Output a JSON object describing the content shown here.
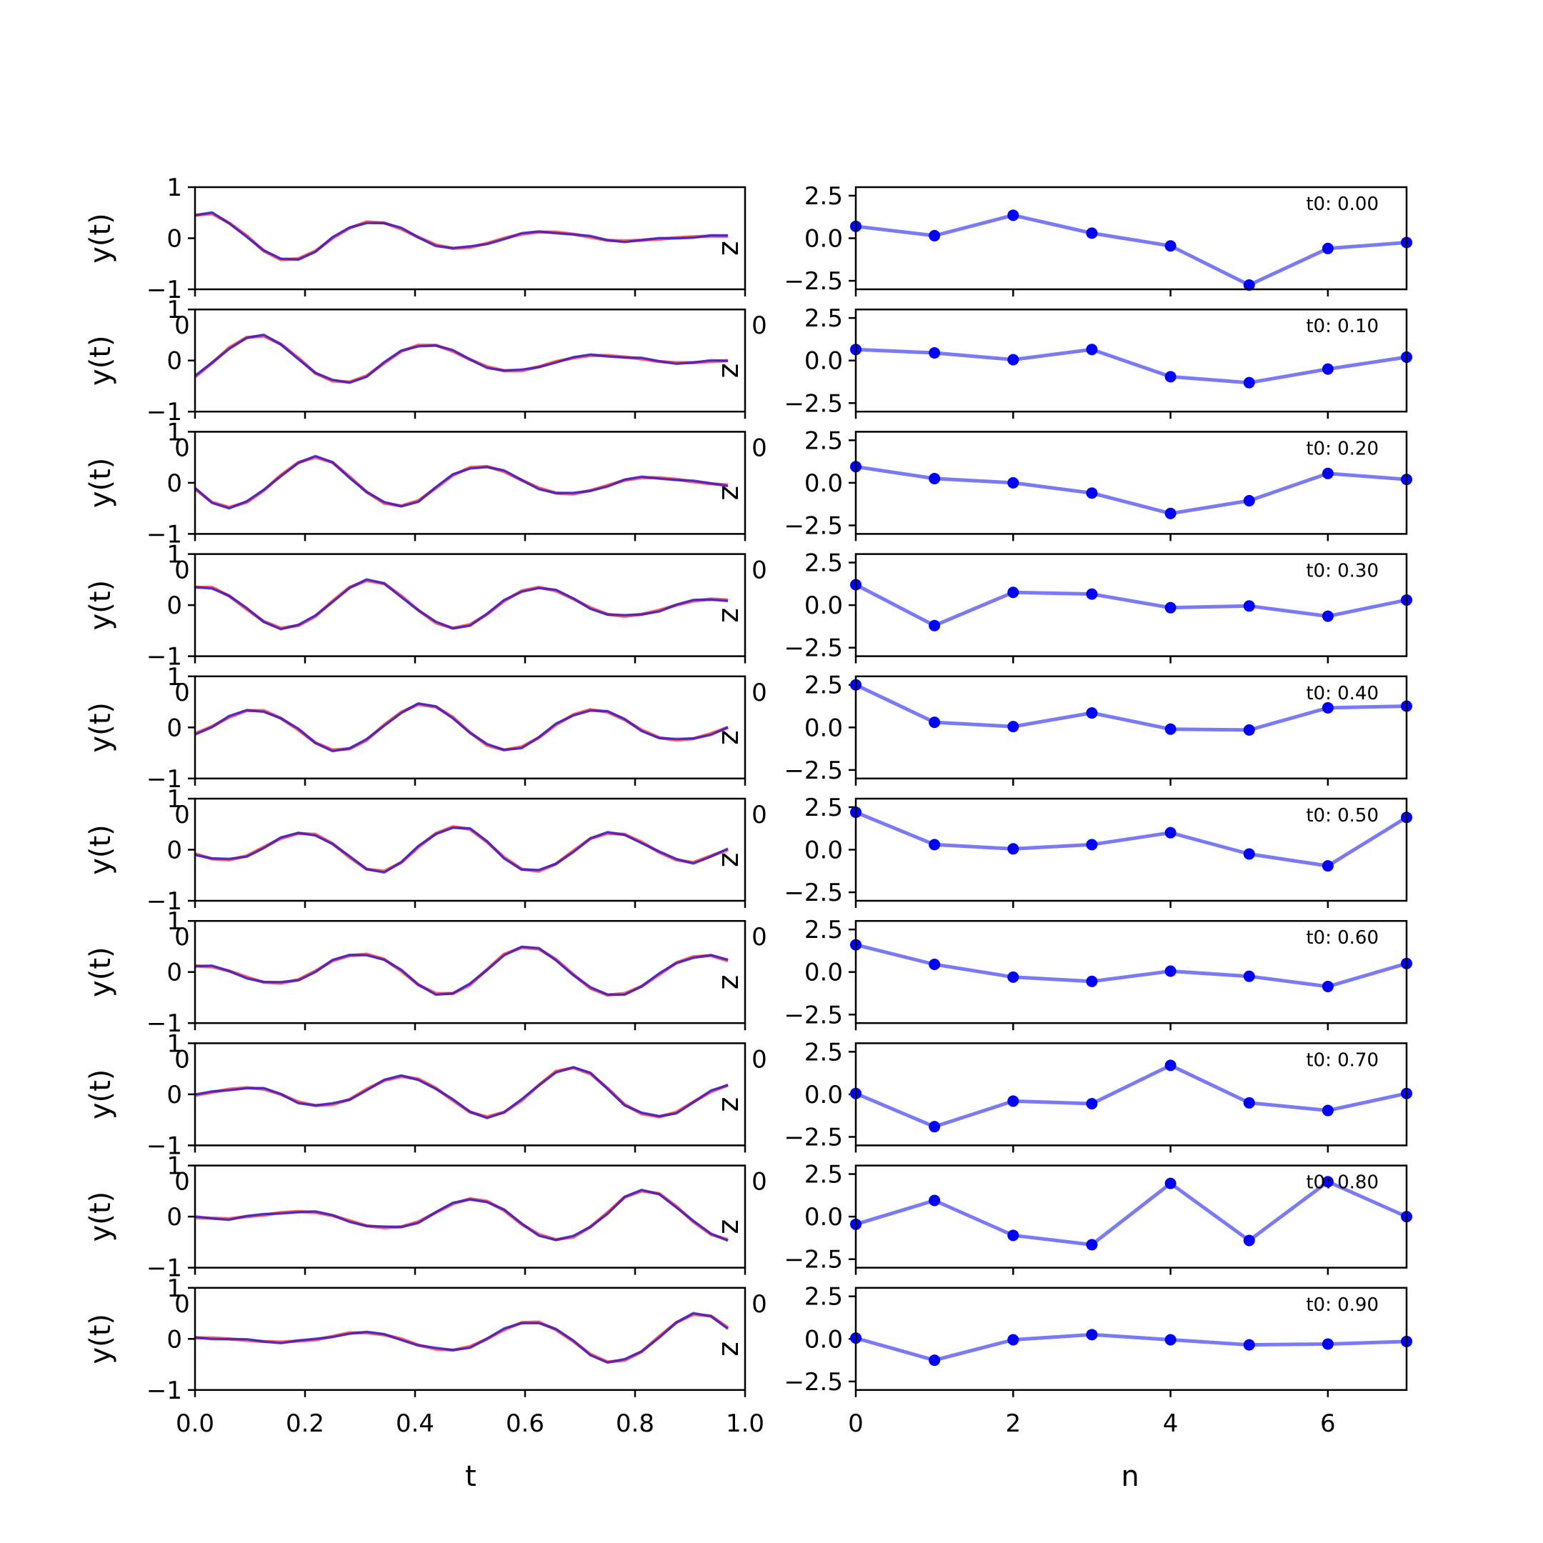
{
  "chart_data": [
    {
      "type": "line",
      "xlabel": "t",
      "ylabel": "y(t)",
      "xlim": [
        0,
        1
      ],
      "ylim": [
        -1,
        1
      ],
      "x_ticks": [
        "0.0",
        "0.2",
        "0.4",
        "0.6",
        "0.8",
        "1.0"
      ],
      "y_ticks": [
        "1",
        "0",
        "−1"
      ],
      "stray_tick_label": "0",
      "stray_side_label": "z",
      "colors": {
        "series_a": "#ff3030",
        "series_b": "#0000dd",
        "overlap": "#800080"
      },
      "t": [
        0.0,
        0.031,
        0.062,
        0.094,
        0.125,
        0.156,
        0.188,
        0.219,
        0.25,
        0.281,
        0.312,
        0.344,
        0.375,
        0.406,
        0.438,
        0.469,
        0.5,
        0.531,
        0.562,
        0.594,
        0.625,
        0.656,
        0.688,
        0.719,
        0.75,
        0.781,
        0.812,
        0.844,
        0.875,
        0.906,
        0.938,
        0.969
      ],
      "panels": [
        {
          "y": [
            0.45,
            0.48,
            0.3,
            0.05,
            -0.25,
            -0.42,
            -0.4,
            -0.25,
            0.0,
            0.2,
            0.32,
            0.3,
            0.18,
            0.02,
            -0.13,
            -0.2,
            -0.18,
            -0.1,
            0.0,
            0.08,
            0.12,
            0.12,
            0.08,
            0.02,
            -0.04,
            -0.05,
            -0.04,
            -0.02,
            0.01,
            0.03,
            0.04,
            0.04
          ]
        },
        {
          "y": [
            -0.32,
            -0.05,
            0.25,
            0.45,
            0.48,
            0.32,
            0.05,
            -0.25,
            -0.4,
            -0.42,
            -0.3,
            -0.05,
            0.18,
            0.3,
            0.3,
            0.18,
            0.02,
            -0.12,
            -0.2,
            -0.2,
            -0.12,
            -0.02,
            0.05,
            0.1,
            0.1,
            0.07,
            0.03,
            -0.02,
            -0.04,
            -0.04,
            -0.02,
            0.0
          ]
        },
        {
          "y": [
            -0.12,
            -0.38,
            -0.48,
            -0.38,
            -0.15,
            0.15,
            0.4,
            0.5,
            0.4,
            0.12,
            -0.18,
            -0.4,
            -0.45,
            -0.35,
            -0.1,
            0.15,
            0.3,
            0.32,
            0.22,
            0.05,
            -0.1,
            -0.2,
            -0.22,
            -0.15,
            -0.05,
            0.05,
            0.1,
            0.1,
            0.07,
            0.02,
            -0.02,
            -0.04
          ]
        },
        {
          "y": [
            0.35,
            0.35,
            0.18,
            -0.08,
            -0.32,
            -0.45,
            -0.4,
            -0.22,
            0.08,
            0.35,
            0.48,
            0.42,
            0.18,
            -0.1,
            -0.35,
            -0.45,
            -0.38,
            -0.18,
            0.08,
            0.28,
            0.35,
            0.28,
            0.12,
            -0.05,
            -0.18,
            -0.22,
            -0.18,
            -0.1,
            0.0,
            0.08,
            0.12,
            0.1
          ]
        },
        {
          "y": [
            -0.12,
            0.02,
            0.2,
            0.33,
            0.33,
            0.18,
            -0.05,
            -0.3,
            -0.44,
            -0.42,
            -0.25,
            0.05,
            0.3,
            0.45,
            0.4,
            0.2,
            -0.1,
            -0.35,
            -0.44,
            -0.38,
            -0.2,
            0.05,
            0.25,
            0.35,
            0.3,
            0.15,
            -0.05,
            -0.2,
            -0.25,
            -0.22,
            -0.12,
            0.0
          ]
        },
        {
          "y": [
            -0.08,
            -0.18,
            -0.2,
            -0.12,
            0.05,
            0.22,
            0.32,
            0.3,
            0.12,
            -0.15,
            -0.38,
            -0.42,
            -0.25,
            0.05,
            0.32,
            0.45,
            0.4,
            0.15,
            -0.15,
            -0.38,
            -0.42,
            -0.28,
            -0.02,
            0.22,
            0.32,
            0.3,
            0.15,
            -0.05,
            -0.2,
            -0.25,
            -0.12,
            0.0
          ]
        },
        {
          "y": [
            0.12,
            0.1,
            0.02,
            -0.1,
            -0.2,
            -0.22,
            -0.15,
            0.02,
            0.22,
            0.32,
            0.35,
            0.25,
            0.02,
            -0.25,
            -0.42,
            -0.42,
            -0.25,
            0.05,
            0.35,
            0.48,
            0.45,
            0.25,
            -0.05,
            -0.32,
            -0.45,
            -0.42,
            -0.28,
            -0.05,
            0.18,
            0.3,
            0.32,
            0.22
          ]
        },
        {
          "y": [
            -0.02,
            0.04,
            0.1,
            0.13,
            0.1,
            0.0,
            -0.15,
            -0.22,
            -0.2,
            -0.1,
            0.1,
            0.27,
            0.35,
            0.3,
            0.12,
            -0.12,
            -0.35,
            -0.44,
            -0.35,
            -0.12,
            0.18,
            0.45,
            0.52,
            0.4,
            0.12,
            -0.2,
            -0.38,
            -0.44,
            -0.35,
            -0.15,
            0.05,
            0.18
          ]
        },
        {
          "y": [
            -0.02,
            -0.03,
            -0.04,
            0.0,
            0.03,
            0.08,
            0.1,
            0.08,
            0.02,
            -0.08,
            -0.18,
            -0.22,
            -0.2,
            -0.1,
            0.08,
            0.25,
            0.35,
            0.3,
            0.12,
            -0.15,
            -0.35,
            -0.45,
            -0.4,
            -0.2,
            0.08,
            0.38,
            0.5,
            0.45,
            0.2,
            -0.1,
            -0.35,
            -0.45
          ]
        },
        {
          "y": [
            0.02,
            0.02,
            0.0,
            -0.03,
            -0.05,
            -0.06,
            -0.04,
            -0.02,
            0.05,
            0.12,
            0.12,
            0.08,
            0.0,
            -0.12,
            -0.2,
            -0.22,
            -0.15,
            0.0,
            0.18,
            0.32,
            0.33,
            0.18,
            -0.05,
            -0.3,
            -0.45,
            -0.42,
            -0.25,
            0.05,
            0.32,
            0.48,
            0.45,
            0.22
          ]
        }
      ]
    },
    {
      "type": "line",
      "xlabel": "n",
      "xlim": [
        0,
        7
      ],
      "ylim": [
        -3,
        3
      ],
      "x_ticks": [
        "0",
        "2",
        "4",
        "6"
      ],
      "y_ticks": [
        "2.5",
        "0.0",
        "−2.5"
      ],
      "stray_tick_label": "0",
      "colors": {
        "line": "#7a7af5",
        "marker": "#0000ff"
      },
      "n": [
        0,
        1,
        2,
        3,
        4,
        5,
        6,
        7
      ],
      "panels": [
        {
          "label": "t0: 0.00",
          "y": [
            0.7,
            0.15,
            1.35,
            0.3,
            -0.45,
            -2.75,
            -0.6,
            -0.25
          ]
        },
        {
          "label": "t0: 0.10",
          "y": [
            0.65,
            0.45,
            0.05,
            0.65,
            -0.95,
            -1.3,
            -0.5,
            0.2
          ]
        },
        {
          "label": "t0: 0.20",
          "y": [
            0.95,
            0.25,
            0.0,
            -0.6,
            -1.8,
            -1.05,
            0.55,
            0.2
          ]
        },
        {
          "label": "t0: 0.30",
          "y": [
            1.2,
            -1.2,
            0.75,
            0.65,
            -0.15,
            -0.05,
            -0.65,
            0.3
          ]
        },
        {
          "label": "t0: 0.40",
          "y": [
            2.5,
            0.3,
            0.05,
            0.85,
            -0.1,
            -0.15,
            1.15,
            1.25
          ]
        },
        {
          "label": "t0: 0.50",
          "y": [
            2.2,
            0.3,
            0.05,
            0.3,
            1.0,
            -0.25,
            -0.95,
            1.9
          ]
        },
        {
          "label": "t0: 0.60",
          "y": [
            1.6,
            0.45,
            -0.3,
            -0.55,
            0.05,
            -0.25,
            -0.85,
            0.5
          ]
        },
        {
          "label": "t0: 0.70",
          "y": [
            0.05,
            -1.9,
            -0.4,
            -0.55,
            1.7,
            -0.5,
            -0.95,
            0.05
          ]
        },
        {
          "label": "t0: 0.80",
          "y": [
            -0.45,
            0.95,
            -1.1,
            -1.65,
            1.95,
            -1.4,
            2.05,
            0.0
          ]
        },
        {
          "label": "t0: 0.90",
          "y": [
            0.05,
            -1.25,
            -0.05,
            0.25,
            -0.05,
            -0.35,
            -0.3,
            -0.15
          ]
        }
      ]
    }
  ]
}
